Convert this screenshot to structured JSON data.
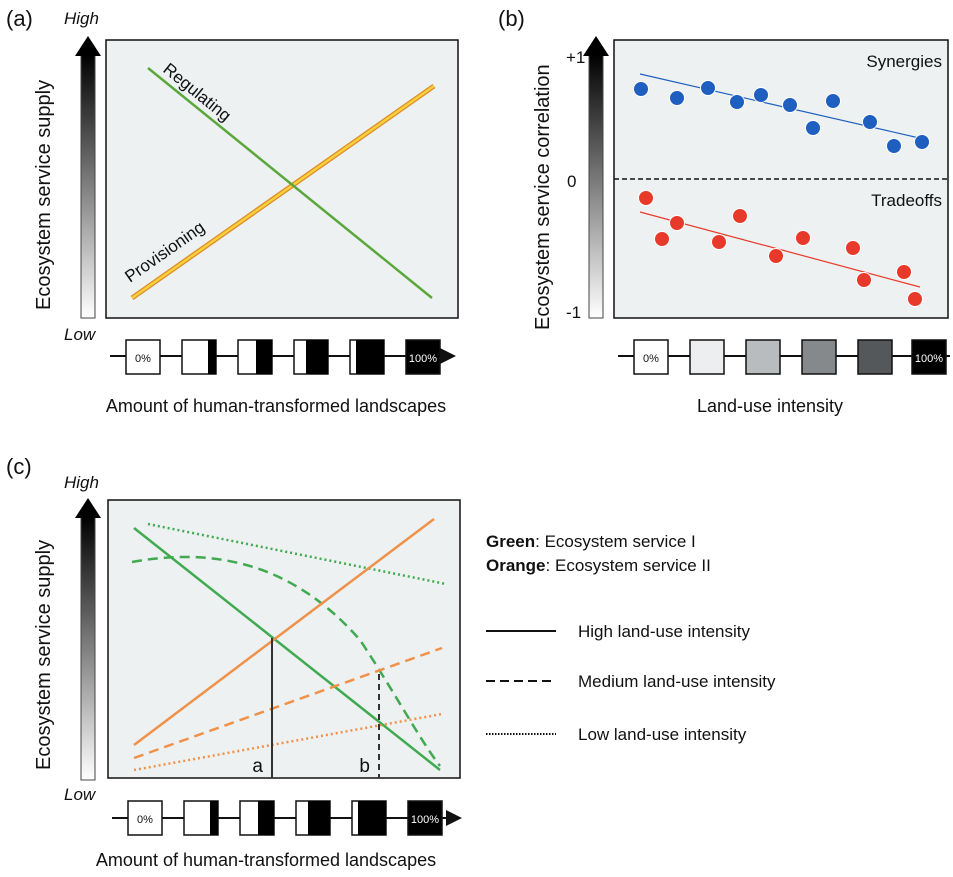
{
  "panel_a": {
    "label": "(a)",
    "y_high": "High",
    "y_low": "Low",
    "y_label": "Ecosystem service supply",
    "x_label": "Amount of human-transformed landscapes",
    "line_regulating": "Regulating",
    "line_provisioning": "Provisioning",
    "scale_start": "0%",
    "scale_end": "100%",
    "colors": {
      "regulating": "#5aa83c",
      "provisioning": "#f1c232",
      "provisioning_outline": "#e08a2a"
    }
  },
  "panel_b": {
    "label": "(b)",
    "y_top": "+1",
    "y_mid": "0",
    "y_bottom": "-1",
    "y_label": "Ecosystem service correlation",
    "x_label": "Land-use intensity",
    "synergies": "Synergies",
    "tradeoffs": "Tradeoffs",
    "scale_start": "0%",
    "scale_end": "100%",
    "colors": {
      "synergies": "#1f5fbf",
      "tradeoffs": "#e83a2a"
    }
  },
  "panel_c": {
    "label": "(c)",
    "y_high": "High",
    "y_low": "Low",
    "y_label": "Ecosystem service supply",
    "x_label": "Amount of human-transformed landscapes",
    "marker_a": "a",
    "marker_b": "b",
    "scale_start": "0%",
    "scale_end": "100%",
    "colors": {
      "green": "#3faa4f",
      "orange": "#f0914a"
    }
  },
  "legend": {
    "green_key": "Green",
    "green_value": ":   Ecosystem service I",
    "orange_key": "Orange",
    "orange_value": ": Ecosystem service II",
    "high": "High land-use intensity",
    "medium": "Medium land-use intensity",
    "low": "Low land-use intensity"
  }
}
